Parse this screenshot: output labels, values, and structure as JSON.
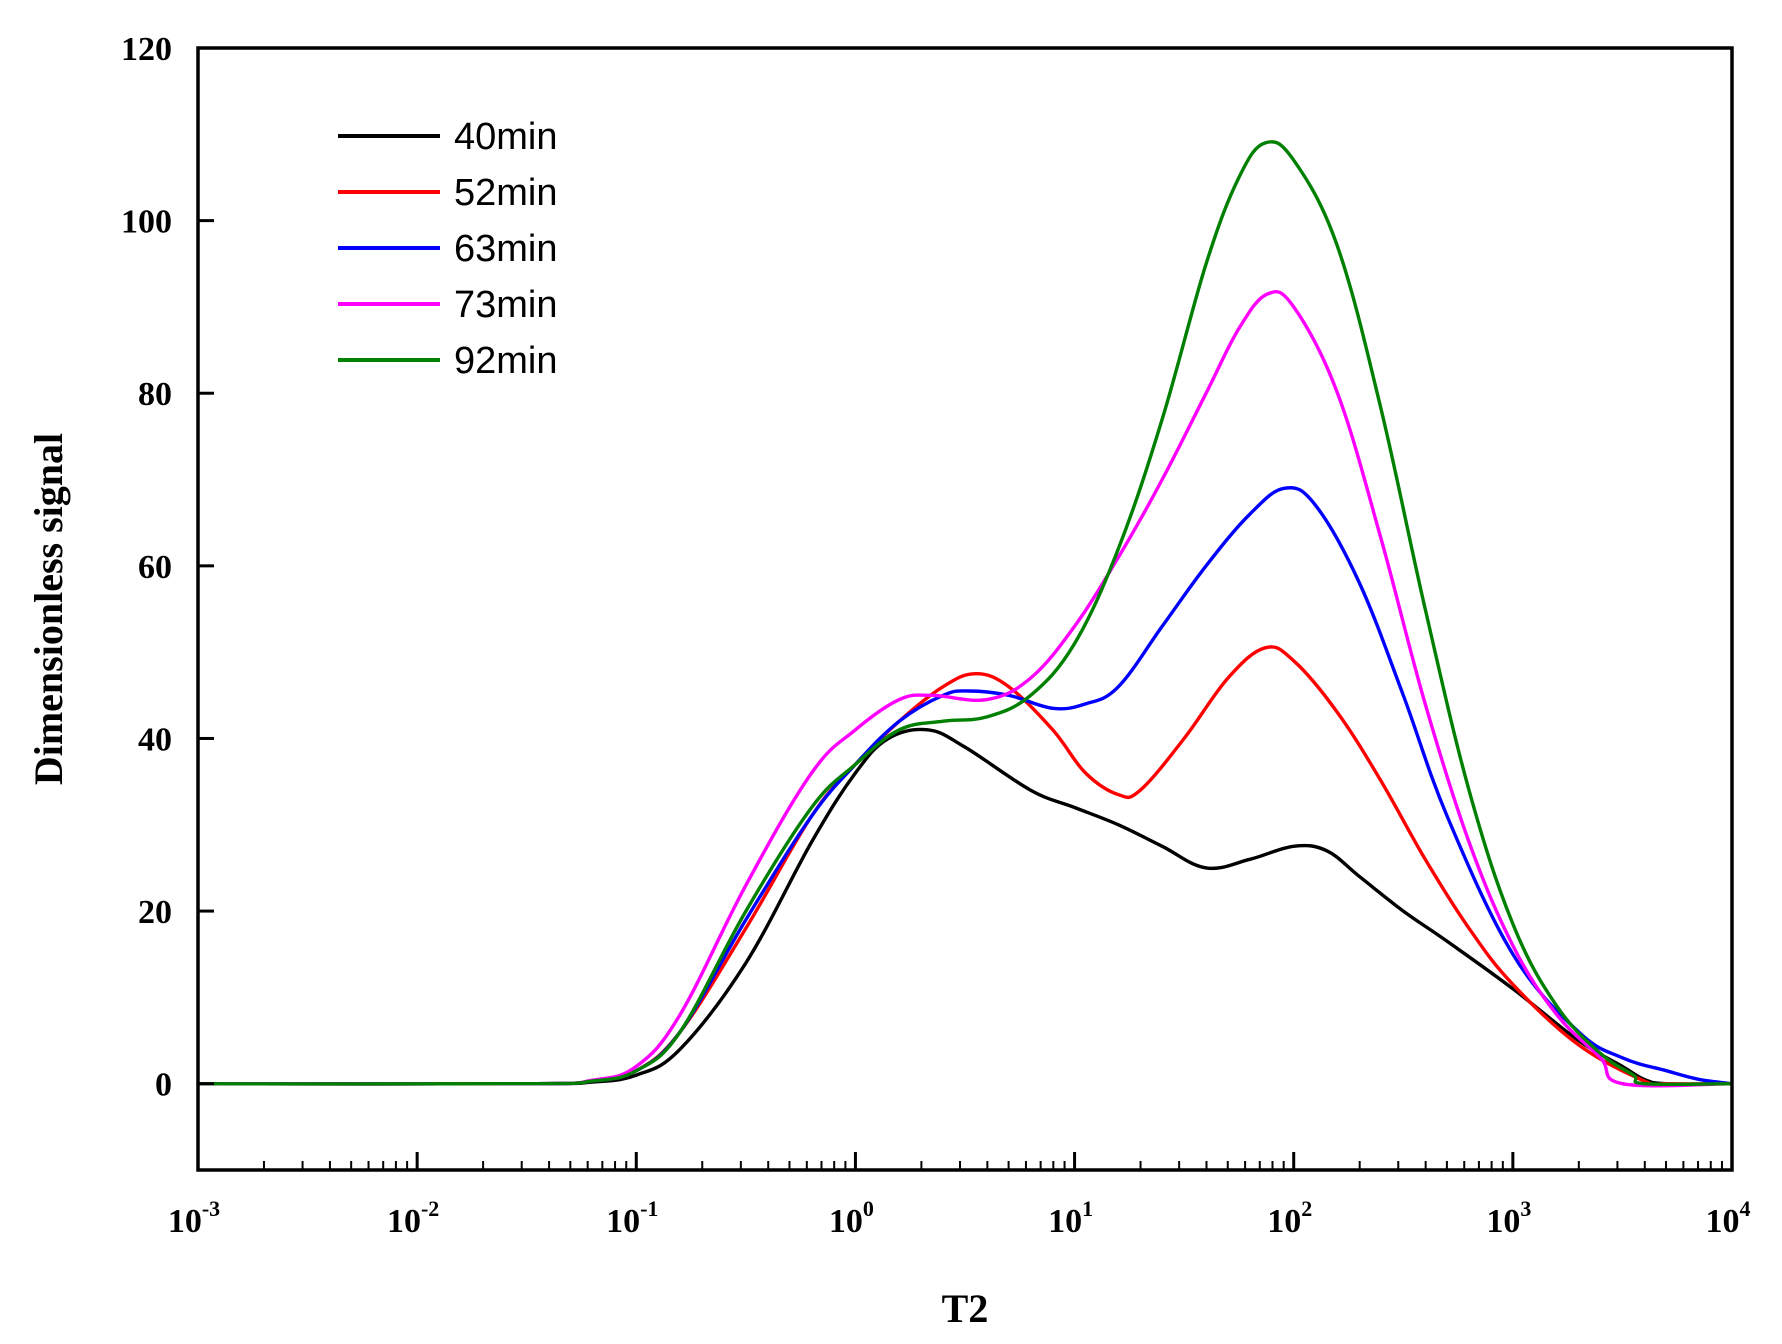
{
  "chart_data": {
    "type": "line",
    "title": "",
    "xlabel": "T2",
    "ylabel": "Dimensionless signal",
    "xscale": "log",
    "xlim": [
      0.001,
      10000
    ],
    "ylim": [
      -10,
      120
    ],
    "x_ticks": [
      {
        "value": 0.001,
        "base": "10",
        "exp": "-3"
      },
      {
        "value": 0.01,
        "base": "10",
        "exp": "-2"
      },
      {
        "value": 0.1,
        "base": "10",
        "exp": "-1"
      },
      {
        "value": 1,
        "base": "10",
        "exp": "0"
      },
      {
        "value": 10,
        "base": "10",
        "exp": "1"
      },
      {
        "value": 100,
        "base": "10",
        "exp": "2"
      },
      {
        "value": 1000,
        "base": "10",
        "exp": "3"
      },
      {
        "value": 10000,
        "base": "10",
        "exp": "4"
      }
    ],
    "y_ticks": [
      {
        "value": 0,
        "label": "0"
      },
      {
        "value": 20,
        "label": "20"
      },
      {
        "value": 40,
        "label": "40"
      },
      {
        "value": 60,
        "label": "60"
      },
      {
        "value": 80,
        "label": "80"
      },
      {
        "value": 100,
        "label": "100"
      },
      {
        "value": 120,
        "label": "120"
      }
    ],
    "legend_position": "top-left",
    "series": [
      {
        "name": "40min",
        "color": "#000000",
        "points": [
          [
            -3,
            0
          ],
          [
            -1.5,
            0
          ],
          [
            -1.2,
            0.2
          ],
          [
            -1,
            1
          ],
          [
            -0.8,
            4
          ],
          [
            -0.5,
            14
          ],
          [
            -0.2,
            28
          ],
          [
            0,
            36
          ],
          [
            0.15,
            40
          ],
          [
            0.33,
            41
          ],
          [
            0.5,
            39
          ],
          [
            0.8,
            34
          ],
          [
            1,
            32
          ],
          [
            1.2,
            30
          ],
          [
            1.4,
            27.5
          ],
          [
            1.6,
            25
          ],
          [
            1.8,
            26
          ],
          [
            2,
            27.5
          ],
          [
            2.15,
            27
          ],
          [
            2.3,
            24
          ],
          [
            2.5,
            20
          ],
          [
            2.7,
            16.5
          ],
          [
            3,
            11
          ],
          [
            3.3,
            5
          ],
          [
            3.5,
            2
          ],
          [
            3.6,
            0.5
          ],
          [
            3.7,
            0
          ],
          [
            4,
            0
          ]
        ]
      },
      {
        "name": "52min",
        "color": "#ff0000",
        "points": [
          [
            -3,
            0
          ],
          [
            -1.5,
            0
          ],
          [
            -1.2,
            0.3
          ],
          [
            -1,
            1.5
          ],
          [
            -0.8,
            6
          ],
          [
            -0.5,
            18
          ],
          [
            -0.2,
            31
          ],
          [
            0,
            37
          ],
          [
            0.2,
            42
          ],
          [
            0.4,
            46
          ],
          [
            0.55,
            47.5
          ],
          [
            0.7,
            46
          ],
          [
            0.9,
            41
          ],
          [
            1.05,
            36
          ],
          [
            1.2,
            33.5
          ],
          [
            1.3,
            34
          ],
          [
            1.5,
            40
          ],
          [
            1.7,
            47
          ],
          [
            1.87,
            50.5
          ],
          [
            2,
            49
          ],
          [
            2.2,
            43
          ],
          [
            2.4,
            35
          ],
          [
            2.6,
            26
          ],
          [
            2.8,
            18
          ],
          [
            3,
            11.5
          ],
          [
            3.3,
            4.5
          ],
          [
            3.6,
            0.3
          ],
          [
            3.7,
            0
          ],
          [
            4,
            0
          ]
        ]
      },
      {
        "name": "63min",
        "color": "#0000ff",
        "points": [
          [
            -3,
            0
          ],
          [
            -1.5,
            0
          ],
          [
            -1.2,
            0.3
          ],
          [
            -1,
            1.5
          ],
          [
            -0.8,
            6
          ],
          [
            -0.5,
            19
          ],
          [
            -0.2,
            31
          ],
          [
            0,
            37
          ],
          [
            0.2,
            42
          ],
          [
            0.4,
            45
          ],
          [
            0.52,
            45.5
          ],
          [
            0.7,
            45
          ],
          [
            0.9,
            43.5
          ],
          [
            1.05,
            44
          ],
          [
            1.2,
            46
          ],
          [
            1.4,
            53
          ],
          [
            1.6,
            60
          ],
          [
            1.8,
            66
          ],
          [
            1.96,
            69
          ],
          [
            2.1,
            67
          ],
          [
            2.3,
            58
          ],
          [
            2.5,
            45
          ],
          [
            2.7,
            31
          ],
          [
            3,
            15
          ],
          [
            3.3,
            6
          ],
          [
            3.5,
            3
          ],
          [
            3.7,
            1.5
          ],
          [
            3.85,
            0.5
          ],
          [
            4,
            0
          ]
        ]
      },
      {
        "name": "73min",
        "color": "#ff00ff",
        "points": [
          [
            -3,
            0
          ],
          [
            -1.5,
            0
          ],
          [
            -1.2,
            0.4
          ],
          [
            -1,
            2
          ],
          [
            -0.8,
            8
          ],
          [
            -0.5,
            23
          ],
          [
            -0.2,
            36
          ],
          [
            0,
            41
          ],
          [
            0.2,
            44.5
          ],
          [
            0.35,
            45
          ],
          [
            0.6,
            44.5
          ],
          [
            0.8,
            47
          ],
          [
            1,
            53
          ],
          [
            1.2,
            61
          ],
          [
            1.4,
            70
          ],
          [
            1.6,
            80
          ],
          [
            1.75,
            87.5
          ],
          [
            1.88,
            91.5
          ],
          [
            2,
            90
          ],
          [
            2.2,
            80
          ],
          [
            2.4,
            63
          ],
          [
            2.6,
            44
          ],
          [
            2.8,
            28
          ],
          [
            3,
            16
          ],
          [
            3.2,
            8
          ],
          [
            3.4,
            3
          ],
          [
            3.5,
            0
          ],
          [
            4,
            0
          ]
        ]
      },
      {
        "name": "92min",
        "color": "#008000",
        "points": [
          [
            -3,
            0
          ],
          [
            -1.5,
            0
          ],
          [
            -1.2,
            0.3
          ],
          [
            -1,
            1.5
          ],
          [
            -0.8,
            6
          ],
          [
            -0.5,
            20
          ],
          [
            -0.2,
            32
          ],
          [
            0,
            37
          ],
          [
            0.2,
            41
          ],
          [
            0.4,
            42
          ],
          [
            0.6,
            42.5
          ],
          [
            0.8,
            45
          ],
          [
            1,
            51
          ],
          [
            1.2,
            62
          ],
          [
            1.4,
            77
          ],
          [
            1.6,
            95
          ],
          [
            1.75,
            105
          ],
          [
            1.87,
            109
          ],
          [
            2,
            107
          ],
          [
            2.2,
            97
          ],
          [
            2.4,
            78
          ],
          [
            2.6,
            55
          ],
          [
            2.8,
            34
          ],
          [
            3,
            18.5
          ],
          [
            3.2,
            9
          ],
          [
            3.4,
            3.5
          ],
          [
            3.55,
            1
          ],
          [
            3.6,
            0
          ],
          [
            4,
            0
          ]
        ]
      }
    ]
  }
}
